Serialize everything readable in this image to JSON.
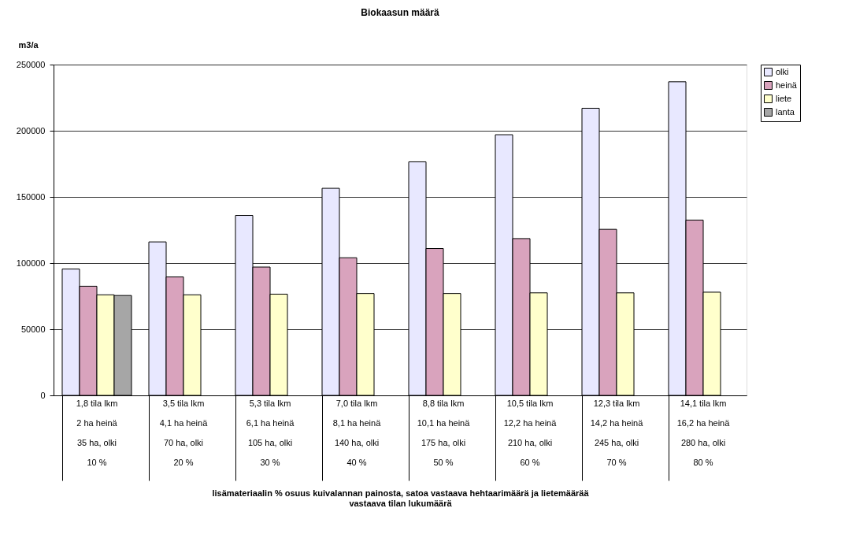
{
  "chart_data": {
    "type": "bar",
    "title": "Biokaasun määrä",
    "ylabel": "m3/a",
    "xlabel": "lisämateriaalin % osuus kuivalannan painosta, satoa vastaava hehtaarimäärä ja lietemäärää vastaava tilan lukumäärä",
    "categories": [
      "1,8 tila lkm\n2 ha heinä\n35 ha, olki\n10 %",
      "3,5 tila lkm\n4,1 ha heinä\n70 ha, olki\n20 %",
      "5,3 tila lkm\n6,1 ha heinä\n105 ha, olki\n30 %",
      "7,0 tila lkm\n8,1 ha heinä\n140 ha, olki\n40 %",
      "8,8 tila lkm\n10,1 ha heinä\n175 ha, olki\n50 %",
      "10,5 tila lkm\n12,2 ha heinä\n210 ha, olki\n60 %",
      "12,3 tila lkm\n14,2 ha heinä\n245 ha, olki\n70 %",
      "14,1 tila lkm\n16,2 ha heinä\n280 ha, olki\n80 %"
    ],
    "series": [
      {
        "name": "olki",
        "color": "#e8e8ff",
        "values": [
          95500,
          116000,
          136000,
          156500,
          176500,
          197000,
          217000,
          237000
        ]
      },
      {
        "name": "heinä",
        "color": "#d9a3bd",
        "values": [
          82500,
          89500,
          97000,
          104000,
          111000,
          118500,
          125500,
          132500
        ]
      },
      {
        "name": "liete",
        "color": "#ffffcc",
        "values": [
          76000,
          76000,
          76500,
          77000,
          77000,
          77500,
          77500,
          78000
        ]
      },
      {
        "name": "lanta",
        "color": "#a6a6a6",
        "values": [
          75500,
          null,
          null,
          null,
          null,
          null,
          null,
          null
        ]
      }
    ],
    "ylim": [
      0,
      250000
    ],
    "yticks": [
      0,
      50000,
      100000,
      150000,
      200000,
      250000
    ],
    "grid": "y",
    "legend": "right"
  }
}
